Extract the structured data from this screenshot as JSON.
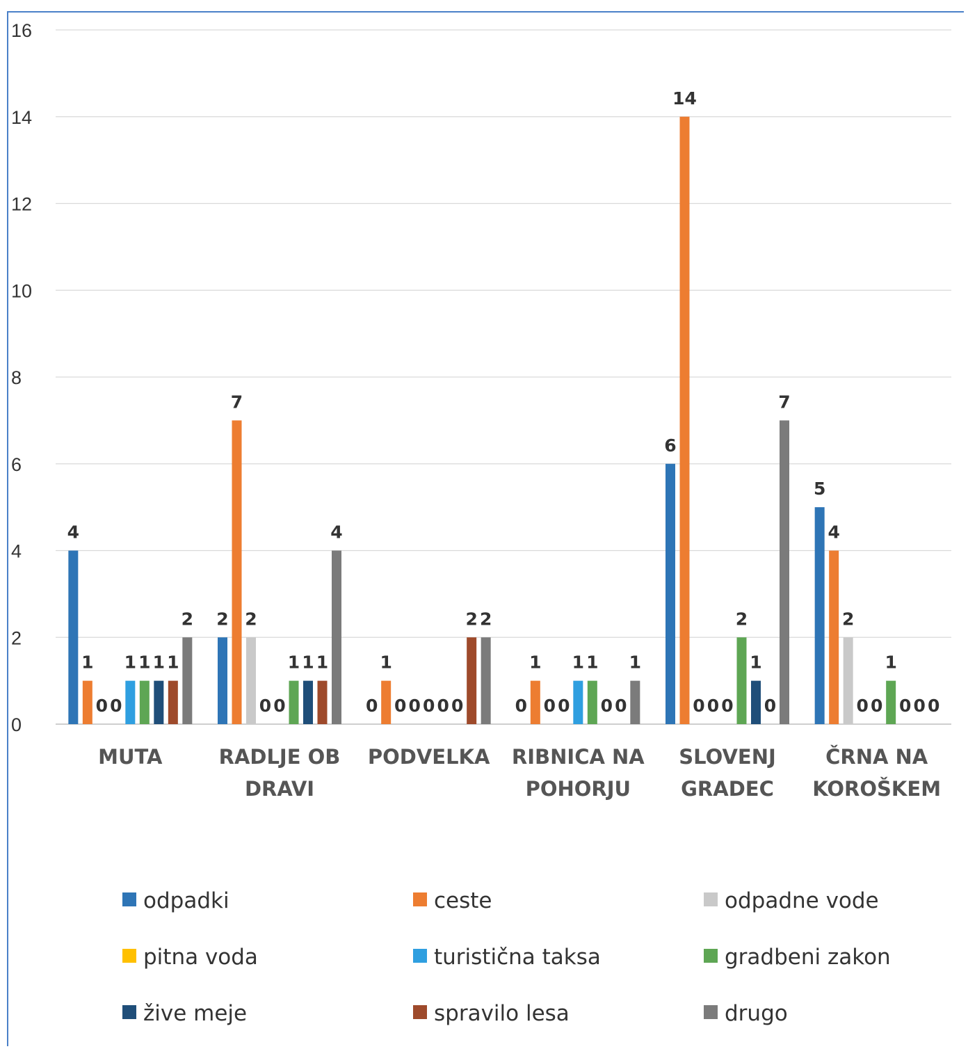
{
  "chart_data": {
    "type": "bar",
    "ylim": [
      0,
      16
    ],
    "yticks": [
      "0",
      "2",
      "4",
      "6",
      "8",
      "10",
      "12",
      "14",
      "16"
    ],
    "grid": true,
    "legend_position": "bottom",
    "categories": [
      [
        "MUTA"
      ],
      [
        "RADLJE OB",
        "DRAVI"
      ],
      [
        "PODVELKA"
      ],
      [
        "RIBNICA NA",
        "POHORJU"
      ],
      [
        "SLOVENJ",
        "GRADEC"
      ],
      [
        "ČRNA NA",
        "KOROŠKEM"
      ]
    ],
    "series": [
      {
        "name": "odpadki",
        "color": "#2e75b6",
        "values": [
          4,
          2,
          0,
          0,
          6,
          5
        ]
      },
      {
        "name": "ceste",
        "color": "#ed7d31",
        "values": [
          1,
          7,
          1,
          1,
          14,
          4
        ]
      },
      {
        "name": "odpadne vode",
        "color": "#c9c9c9",
        "values": [
          0,
          2,
          0,
          0,
          0,
          2
        ]
      },
      {
        "name": "pitna voda",
        "color": "#ffc000",
        "values": [
          0,
          0,
          0,
          0,
          0,
          0
        ]
      },
      {
        "name": "turistična taksa",
        "color": "#2f9fe0",
        "values": [
          1,
          0,
          0,
          1,
          0,
          0
        ]
      },
      {
        "name": "gradbeni zakon",
        "color": "#5ea654",
        "values": [
          1,
          1,
          0,
          1,
          2,
          1
        ]
      },
      {
        "name": "žive meje",
        "color": "#1f4e79",
        "values": [
          1,
          1,
          0,
          0,
          1,
          0
        ]
      },
      {
        "name": "spravilo lesa",
        "color": "#9e4a2b",
        "values": [
          1,
          1,
          2,
          0,
          0,
          0
        ]
      },
      {
        "name": "drugo",
        "color": "#7b7b7b",
        "values": [
          2,
          4,
          2,
          1,
          7,
          0
        ]
      }
    ]
  }
}
